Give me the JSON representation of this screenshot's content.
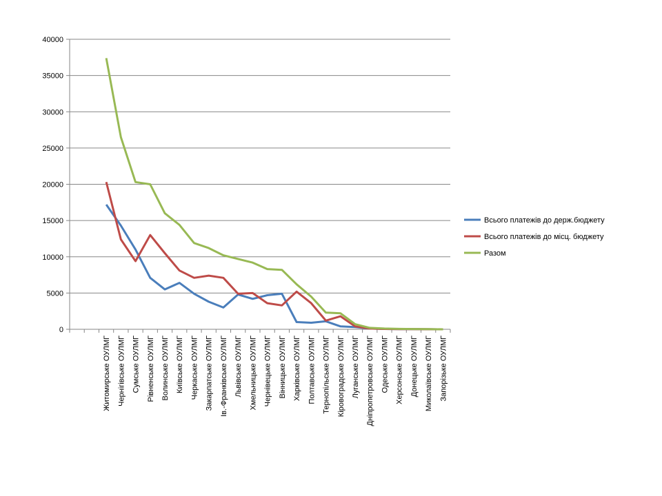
{
  "chart_data": {
    "type": "line",
    "categories": [
      null,
      null,
      "Житомирське ОУЛМГ",
      "Чернігівське ОУЛМГ",
      "Сумське ОУЛМГ",
      "Рівненське ОУЛМГ",
      "Волинське ОУЛМГ",
      "Київське ОУЛМГ",
      "Черкаське ОУЛМГ",
      "Закарпатське ОУЛМГ",
      "Ів.-Франківське ОУЛМГ",
      "Львівське ОУЛМГ",
      "Хмельницьке ОУЛМГ",
      "Чернівецьке ОУЛМГ",
      "Вінницьке ОУЛМГ",
      "Харківське ОУЛМГ",
      "Полтавське ОУЛМГ",
      "Тернопільське ОУЛМГ",
      "Кіровоградське ОУЛМГ",
      "Луганське ОУЛМГ",
      "Дніпропетровське ОУЛМГ",
      "Одеське ОУЛМГ",
      "Херсонське ОУЛМГ",
      "Донецьке ОУЛМГ",
      "Миколаївське ОУЛМГ",
      "Запорізьке ОУЛМГ"
    ],
    "series": [
      {
        "name": "Всього платежів до держ.бюджету",
        "color": "#4a7ebb",
        "values": [
          null,
          null,
          17200,
          14300,
          11000,
          7100,
          5500,
          6400,
          4900,
          3800,
          3000,
          4800,
          4200,
          4700,
          4900,
          1000,
          900,
          1100,
          400,
          300,
          100,
          50,
          30,
          20,
          10,
          0
        ]
      },
      {
        "name": "Всього платежів до місц. бюджету",
        "color": "#be4b48",
        "values": [
          null,
          null,
          20300,
          12400,
          9400,
          13000,
          10500,
          8100,
          7100,
          7400,
          7100,
          4900,
          5000,
          3600,
          3300,
          5200,
          3600,
          1200,
          1800,
          400,
          100,
          50,
          30,
          20,
          10,
          0
        ]
      },
      {
        "name": "Разом",
        "color": "#98b954",
        "values": [
          null,
          null,
          37400,
          26500,
          20300,
          20000,
          16000,
          14400,
          11900,
          11200,
          10200,
          9700,
          9200,
          8300,
          8200,
          6200,
          4500,
          2300,
          2200,
          700,
          200,
          100,
          60,
          40,
          20,
          0
        ]
      }
    ],
    "ylim": [
      0,
      40000
    ],
    "yticks": [
      0,
      5000,
      10000,
      15000,
      20000,
      25000,
      30000,
      35000,
      40000
    ],
    "grid": true,
    "legend": "right"
  }
}
